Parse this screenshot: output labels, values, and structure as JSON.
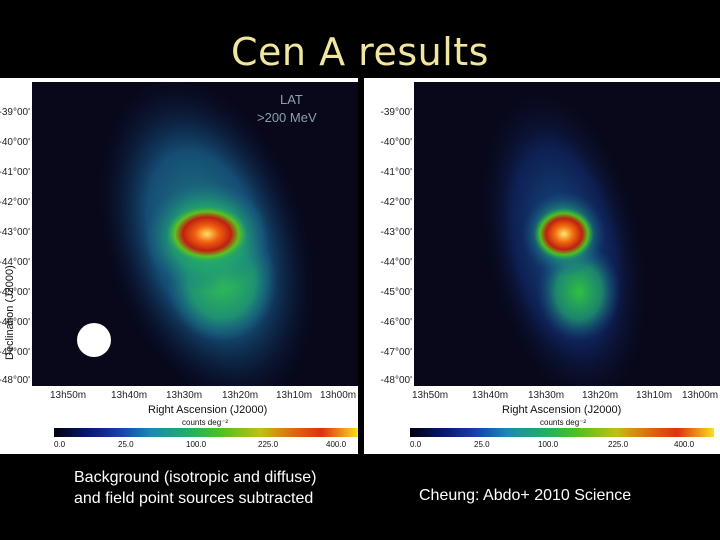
{
  "slide": {
    "title": "Cen A results"
  },
  "left_panel": {
    "overlay_line1": "LAT",
    "overlay_line2": ">200 MeV",
    "y_ticks": [
      "-39°00'",
      "-40°00'",
      "-41°00'",
      "-42°00'",
      "-43°00'",
      "-44°00'",
      "-45°00'",
      "-46°00'",
      "-47°00'",
      "-48°00'"
    ],
    "x_ticks": [
      "13h50m",
      "13h40m",
      "13h30m",
      "13h20m",
      "13h10m",
      "13h00m"
    ],
    "xlabel": "Right Ascension (J2000)",
    "ylabel": "Declination (J2000)",
    "colorbar_label": "counts deg⁻²",
    "colorbar_ticks": [
      "0.0",
      "25.0",
      "100.0",
      "225.0",
      "400.0"
    ]
  },
  "right_panel": {
    "y_ticks": [
      "-39°00'",
      "-40°00'",
      "-41°00'",
      "-42°00'",
      "-43°00'",
      "-44°00'",
      "-45°00'",
      "-46°00'",
      "-47°00'",
      "-48°00'"
    ],
    "x_ticks": [
      "13h50m",
      "13h40m",
      "13h30m",
      "13h20m",
      "13h10m",
      "13h00m"
    ],
    "xlabel": "Right Ascension (J2000)",
    "colorbar_label": "counts deg⁻²",
    "colorbar_ticks": [
      "0.0",
      "25.0",
      "100.0",
      "225.0",
      "400.0"
    ]
  },
  "captions": {
    "left_line1": "Background (isotropic and diffuse)",
    "left_line2": "and field point sources subtracted",
    "right": "Cheung: Abdo+ 2010 Science"
  }
}
